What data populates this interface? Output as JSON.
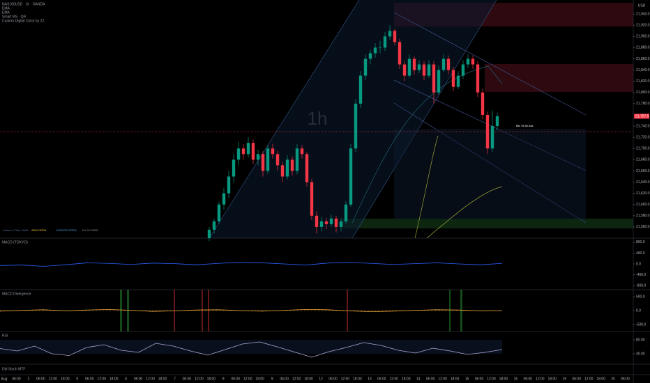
{
  "header": {
    "symbol": "NAS100USD · 1h · OANDA",
    "indicators": [
      "EMA",
      "EMA",
      "Smart MS · QR",
      "Custom Digital Clock by ZZ"
    ],
    "currency": "USD"
  },
  "price_pane": {
    "watermark": "1h",
    "ylim": [
      21540,
      21960
    ],
    "yticks": [
      {
        "value": 21940,
        "label": "21,940.0"
      },
      {
        "value": 21920,
        "label": "21,920.0"
      },
      {
        "value": 21900,
        "label": "21,900.0"
      },
      {
        "value": 21880,
        "label": "21,880.0"
      },
      {
        "value": 21860,
        "label": "21,860.0"
      },
      {
        "value": 21840,
        "label": "21,840.0"
      },
      {
        "value": 21820,
        "label": "21,820.0"
      },
      {
        "value": 21800,
        "label": "21,800.0"
      },
      {
        "value": 21780,
        "label": "21,780.0"
      },
      {
        "value": 21740,
        "label": "21,740.0"
      },
      {
        "value": 21720,
        "label": "21,720.0"
      },
      {
        "value": 21700,
        "label": "21,700.0"
      },
      {
        "value": 21680,
        "label": "21,680.0"
      },
      {
        "value": 21660,
        "label": "21,660.0"
      },
      {
        "value": 21640,
        "label": "21,640.0"
      },
      {
        "value": 21620,
        "label": "21,620.0"
      },
      {
        "value": 21600,
        "label": "21,600.0"
      },
      {
        "value": 21580,
        "label": "21,580.0"
      },
      {
        "value": 21560,
        "label": "21,560.0"
      }
    ],
    "last_price": {
      "value": 21757.5,
      "label": "21,757.5"
    },
    "bid_label": "Bid 76.50 Ask",
    "session_labels": [
      "Asian Lo Time: 3h00",
      "ASIA OPEN",
      "LONDON OPEN",
      "NY CLOSED"
    ],
    "candles": [
      [
        21540,
        21560,
        21535,
        21555
      ],
      [
        21555,
        21575,
        21548,
        21570
      ],
      [
        21570,
        21605,
        21565,
        21600
      ],
      [
        21600,
        21630,
        21590,
        21620
      ],
      [
        21620,
        21660,
        21612,
        21650
      ],
      [
        21650,
        21690,
        21640,
        21680
      ],
      [
        21680,
        21712,
        21670,
        21700
      ],
      [
        21700,
        21708,
        21680,
        21690
      ],
      [
        21690,
        21720,
        21684,
        21710
      ],
      [
        21710,
        21716,
        21672,
        21680
      ],
      [
        21680,
        21698,
        21670,
        21690
      ],
      [
        21690,
        21695,
        21650,
        21660
      ],
      [
        21660,
        21706,
        21655,
        21700
      ],
      [
        21700,
        21708,
        21682,
        21690
      ],
      [
        21690,
        21696,
        21660,
        21670
      ],
      [
        21670,
        21676,
        21640,
        21650
      ],
      [
        21650,
        21688,
        21645,
        21680
      ],
      [
        21680,
        21686,
        21652,
        21660
      ],
      [
        21660,
        21708,
        21654,
        21700
      ],
      [
        21700,
        21706,
        21682,
        21690
      ],
      [
        21690,
        21694,
        21632,
        21640
      ],
      [
        21640,
        21646,
        21572,
        21580
      ],
      [
        21580,
        21588,
        21548,
        21560
      ],
      [
        21560,
        21578,
        21552,
        21570
      ],
      [
        21570,
        21576,
        21556,
        21565
      ],
      [
        21565,
        21582,
        21560,
        21575
      ],
      [
        21575,
        21580,
        21550,
        21560
      ],
      [
        21560,
        21576,
        21552,
        21570
      ],
      [
        21570,
        21606,
        21566,
        21600
      ],
      [
        21600,
        21708,
        21596,
        21700
      ],
      [
        21700,
        21788,
        21694,
        21780
      ],
      [
        21780,
        21838,
        21772,
        21830
      ],
      [
        21830,
        21868,
        21822,
        21860
      ],
      [
        21860,
        21876,
        21850,
        21870
      ],
      [
        21870,
        21888,
        21862,
        21880
      ],
      [
        21880,
        21892,
        21870,
        21880
      ],
      [
        21880,
        21908,
        21874,
        21900
      ],
      [
        21900,
        21920,
        21894,
        21910
      ],
      [
        21910,
        21914,
        21884,
        21890
      ],
      [
        21890,
        21896,
        21842,
        21850
      ],
      [
        21850,
        21856,
        21820,
        21830
      ],
      [
        21830,
        21868,
        21826,
        21860
      ],
      [
        21860,
        21864,
        21832,
        21840
      ],
      [
        21840,
        21858,
        21834,
        21850
      ],
      [
        21850,
        21856,
        21822,
        21830
      ],
      [
        21830,
        21858,
        21826,
        21850
      ],
      [
        21850,
        21856,
        21780,
        21800
      ],
      [
        21800,
        21848,
        21796,
        21840
      ],
      [
        21840,
        21868,
        21836,
        21860
      ],
      [
        21860,
        21866,
        21832,
        21840
      ],
      [
        21840,
        21846,
        21802,
        21810
      ],
      [
        21810,
        21838,
        21806,
        21830
      ],
      [
        21830,
        21858,
        21824,
        21850
      ],
      [
        21850,
        21868,
        21844,
        21860
      ],
      [
        21860,
        21866,
        21842,
        21850
      ],
      [
        21850,
        21856,
        21792,
        21800
      ],
      [
        21800,
        21806,
        21752,
        21760
      ],
      [
        21760,
        21766,
        21690,
        21700
      ],
      [
        21700,
        21768,
        21694,
        21740
      ],
      [
        21740,
        21764,
        21732,
        21757.5
      ]
    ]
  },
  "macd_pane": {
    "title": "MACD (TOKYO)",
    "ylim": [
      -900,
      900
    ],
    "yticks": [
      {
        "value": 800,
        "label": "800.0"
      },
      {
        "value": 400,
        "label": "400.0"
      },
      {
        "value": 0,
        "label": "0.0"
      },
      {
        "value": -400,
        "label": "-400.0"
      },
      {
        "value": -800,
        "label": "-800.0"
      }
    ],
    "values": [
      -60,
      -40,
      -90,
      -30,
      40,
      20,
      -20,
      30,
      10,
      -30,
      20,
      60,
      40,
      0,
      -40,
      30,
      60,
      20,
      -20,
      10,
      40,
      0,
      -30,
      20
    ]
  },
  "divergence_pane": {
    "title": "MACD Divergence",
    "ylim": [
      -700,
      700
    ],
    "yticks": [
      {
        "value": 500,
        "label": "500.0"
      },
      {
        "value": 0,
        "label": "0.0"
      },
      {
        "value": -500,
        "label": "-500.0"
      }
    ],
    "values": [
      -20,
      10,
      30,
      -10,
      20,
      40,
      10,
      -30,
      -10,
      20,
      30,
      0,
      -20,
      10,
      40,
      30,
      -10,
      -40,
      -20,
      10,
      30,
      20,
      -10,
      0
    ]
  },
  "rsi_pane": {
    "title": "RSI",
    "ylim": [
      20,
      100
    ],
    "yticks": [
      {
        "value": 80,
        "label": "80.00"
      },
      {
        "value": 40,
        "label": "40.00"
      }
    ],
    "values": [
      55,
      48,
      62,
      40,
      35,
      58,
      66,
      50,
      44,
      70,
      62,
      48,
      36,
      52,
      68,
      74,
      60,
      45,
      30,
      46,
      58,
      72,
      64,
      50,
      42,
      56,
      48,
      38,
      44,
      52
    ]
  },
  "stoch_pane": {
    "title": "Dbl Stoch MTF"
  },
  "time_axis": {
    "labels": [
      "Aug",
      "06:00",
      "2",
      "06:00",
      "12:00",
      "18:00",
      "5",
      "06:00",
      "12:00",
      "18:00",
      "6",
      "06:00",
      "12:00",
      "18:00",
      "7",
      "06:00",
      "12:00",
      "18:00",
      "8",
      "06:00",
      "12:00",
      "18:00",
      "9",
      "06:00",
      "12:00",
      "18:00",
      "12",
      "06:00",
      "12:00",
      "18:00",
      "13",
      "06:00",
      "12:00",
      "18:00",
      "14",
      "06:00",
      "12:00",
      "18:00",
      "15",
      "06:00",
      "12:00",
      "18:00",
      "16",
      "06:00",
      "12:00",
      "18:00",
      "19",
      "06:00",
      "12:00",
      "18:00",
      "20",
      "06:00"
    ]
  }
}
